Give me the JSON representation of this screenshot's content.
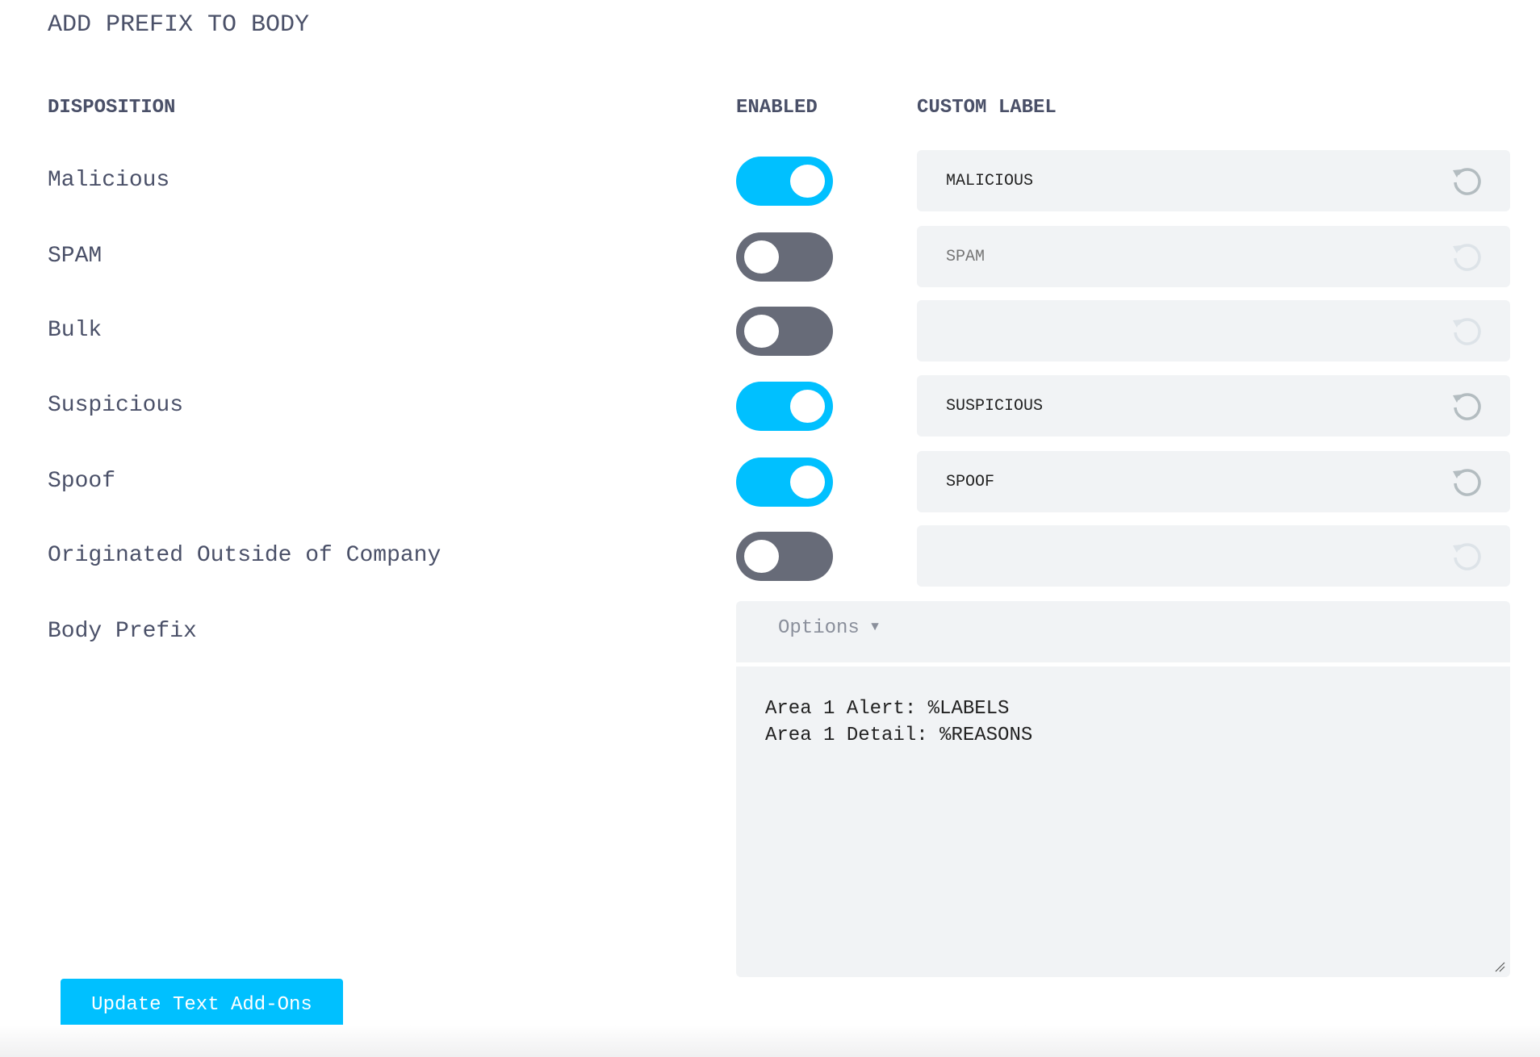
{
  "title": "ADD PREFIX TO BODY",
  "headers": {
    "disposition": "DISPOSITION",
    "enabled": "ENABLED",
    "custom_label": "CUSTOM LABEL"
  },
  "rows": [
    {
      "label": "Malicious",
      "enabled": true,
      "value": "MALICIOUS",
      "placeholder": ""
    },
    {
      "label": "SPAM",
      "enabled": false,
      "value": "",
      "placeholder": "SPAM"
    },
    {
      "label": "Bulk",
      "enabled": false,
      "value": "",
      "placeholder": ""
    },
    {
      "label": "Suspicious",
      "enabled": true,
      "value": "SUSPICIOUS",
      "placeholder": ""
    },
    {
      "label": "Spoof",
      "enabled": true,
      "value": "SPOOF",
      "placeholder": ""
    },
    {
      "label": "Originated Outside of Company",
      "enabled": false,
      "value": "",
      "placeholder": ""
    }
  ],
  "body_prefix": {
    "label": "Body Prefix",
    "options_label": "Options",
    "options_icon": "caret-down-icon",
    "text": "Area 1 Alert: %LABELS\nArea 1 Detail: %REASONS"
  },
  "submit_label": "Update Text Add-Ons",
  "colors": {
    "accent": "#00c0ff",
    "toggle_off": "#676b78",
    "text": "#4a5068",
    "field_bg": "#f1f3f5"
  },
  "icons": {
    "reset": "reset-icon"
  }
}
